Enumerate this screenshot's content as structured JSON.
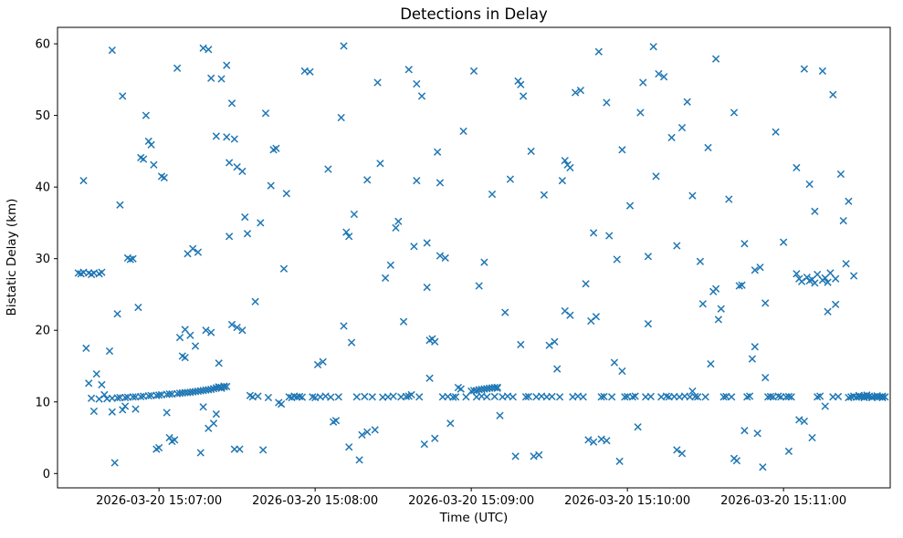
{
  "chart_data": {
    "type": "scatter",
    "title": "Detections in Delay",
    "xlabel": "Time (UTC)",
    "ylabel": "Bistatic Delay (km)",
    "marker": "x",
    "marker_color": "#1f77b4",
    "grid": false,
    "legend": null,
    "x_unit": "seconds after 2026-03-20 15:00:00 UTC",
    "xlim": [
      381,
      701
    ],
    "ylim": [
      -2,
      62.3
    ],
    "x_ticks": [
      {
        "s": 420,
        "label": "2026-03-20 15:07:00"
      },
      {
        "s": 480,
        "label": "2026-03-20 15:08:00"
      },
      {
        "s": 540,
        "label": "2026-03-20 15:09:00"
      },
      {
        "s": 600,
        "label": "2026-03-20 15:10:00"
      },
      {
        "s": 660,
        "label": "2026-03-20 15:11:00"
      }
    ],
    "y_ticks": [
      0,
      10,
      20,
      30,
      40,
      50,
      60
    ],
    "points": [
      [
        389,
        28.0
      ],
      [
        390,
        27.9
      ],
      [
        391,
        28.1
      ],
      [
        391,
        40.9
      ],
      [
        392,
        17.5
      ],
      [
        393,
        28.0
      ],
      [
        393,
        12.6
      ],
      [
        394,
        27.8
      ],
      [
        394,
        10.5
      ],
      [
        395,
        28.0
      ],
      [
        395,
        8.7
      ],
      [
        396,
        13.9
      ],
      [
        397,
        27.9
      ],
      [
        397,
        10.4
      ],
      [
        398,
        28.1
      ],
      [
        398,
        12.4
      ],
      [
        399,
        11.0
      ],
      [
        400,
        10.45
      ],
      [
        401,
        17.1
      ],
      [
        402,
        59.1
      ],
      [
        402,
        10.5
      ],
      [
        402,
        8.6
      ],
      [
        403,
        1.5
      ],
      [
        404,
        22.3
      ],
      [
        404,
        10.55
      ],
      [
        405,
        37.5
      ],
      [
        405,
        10.6
      ],
      [
        406,
        52.7
      ],
      [
        406,
        8.9
      ],
      [
        407,
        10.6
      ],
      [
        407,
        9.4
      ],
      [
        408,
        30.1
      ],
      [
        408,
        10.65
      ],
      [
        409,
        29.9
      ],
      [
        410,
        30.0
      ],
      [
        410,
        10.7
      ],
      [
        411,
        9.0
      ],
      [
        411,
        10.7
      ],
      [
        412,
        23.2
      ],
      [
        413,
        44.1
      ],
      [
        413,
        10.75
      ],
      [
        414,
        43.9
      ],
      [
        414,
        10.8
      ],
      [
        415,
        50.0
      ],
      [
        416,
        46.4
      ],
      [
        416,
        10.85
      ],
      [
        417,
        45.9
      ],
      [
        417,
        10.9
      ],
      [
        418,
        43.1
      ],
      [
        419,
        3.4
      ],
      [
        419,
        10.9
      ],
      [
        420,
        3.6
      ],
      [
        420,
        10.95
      ],
      [
        421,
        41.5
      ],
      [
        421,
        11.0
      ],
      [
        422,
        41.3
      ],
      [
        423,
        8.5
      ],
      [
        423,
        11.05
      ],
      [
        424,
        5.0
      ],
      [
        424,
        11.1
      ],
      [
        425,
        4.5
      ],
      [
        425,
        11.1
      ],
      [
        426,
        4.7
      ],
      [
        427,
        56.6
      ],
      [
        427,
        11.15
      ],
      [
        428,
        19.0
      ],
      [
        428,
        11.2
      ],
      [
        429,
        16.4
      ],
      [
        429,
        11.25
      ],
      [
        430,
        16.2
      ],
      [
        430,
        20.1
      ],
      [
        430,
        11.3
      ],
      [
        431,
        30.7
      ],
      [
        431,
        11.3
      ],
      [
        432,
        19.3
      ],
      [
        432,
        11.35
      ],
      [
        433,
        31.4
      ],
      [
        433,
        11.4
      ],
      [
        434,
        17.8
      ],
      [
        434,
        11.45
      ],
      [
        435,
        30.9
      ],
      [
        435,
        11.5
      ],
      [
        436,
        2.9
      ],
      [
        436,
        11.55
      ],
      [
        437,
        9.3
      ],
      [
        437,
        59.4
      ],
      [
        437,
        11.6
      ],
      [
        438,
        20.0
      ],
      [
        438,
        11.65
      ],
      [
        439,
        59.2
      ],
      [
        439,
        6.3
      ],
      [
        439,
        11.7
      ],
      [
        440,
        19.7
      ],
      [
        440,
        55.2
      ],
      [
        440,
        11.75
      ],
      [
        441,
        7.0
      ],
      [
        441,
        11.85
      ],
      [
        442,
        47.1
      ],
      [
        442,
        8.3
      ],
      [
        442,
        11.95
      ],
      [
        443,
        15.4
      ],
      [
        443,
        12.0
      ],
      [
        443,
        12.1
      ],
      [
        444,
        12.05
      ],
      [
        444,
        11.9
      ],
      [
        445,
        12.1
      ],
      [
        445,
        12.2
      ],
      [
        446,
        12.15
      ],
      [
        444,
        55.1
      ],
      [
        446,
        57.0
      ],
      [
        446,
        47.0
      ],
      [
        447,
        43.4
      ],
      [
        447,
        33.1
      ],
      [
        448,
        51.7
      ],
      [
        448,
        20.8
      ],
      [
        449,
        46.7
      ],
      [
        449,
        3.4
      ],
      [
        450,
        42.8
      ],
      [
        450,
        20.4
      ],
      [
        451,
        3.4
      ],
      [
        452,
        42.2
      ],
      [
        452,
        20.0
      ],
      [
        453,
        35.8
      ],
      [
        454,
        33.5
      ],
      [
        455,
        10.9
      ],
      [
        456,
        10.7
      ],
      [
        457,
        24.0
      ],
      [
        458,
        10.8
      ],
      [
        459,
        35.0
      ],
      [
        460,
        3.3
      ],
      [
        461,
        50.3
      ],
      [
        462,
        10.6
      ],
      [
        463,
        40.2
      ],
      [
        464,
        45.2
      ],
      [
        465,
        45.4
      ],
      [
        466,
        9.9
      ],
      [
        467,
        9.7
      ],
      [
        468,
        28.6
      ],
      [
        469,
        39.1
      ],
      [
        470,
        10.7
      ],
      [
        471,
        10.6
      ],
      [
        472,
        10.8
      ],
      [
        473,
        10.7
      ],
      [
        474,
        10.75
      ],
      [
        475,
        10.65
      ],
      [
        476,
        56.2
      ],
      [
        478,
        56.1
      ],
      [
        479,
        10.7
      ],
      [
        480,
        10.6
      ],
      [
        481,
        15.2
      ],
      [
        482,
        10.7
      ],
      [
        483,
        15.6
      ],
      [
        484,
        10.8
      ],
      [
        485,
        42.5
      ],
      [
        486,
        10.65
      ],
      [
        487,
        7.2
      ],
      [
        488,
        7.4
      ],
      [
        489,
        10.7
      ],
      [
        490,
        49.7
      ],
      [
        491,
        59.7
      ],
      [
        491,
        20.6
      ],
      [
        492,
        33.7
      ],
      [
        493,
        33.1
      ],
      [
        493,
        3.7
      ],
      [
        494,
        18.3
      ],
      [
        495,
        36.2
      ],
      [
        496,
        10.7
      ],
      [
        497,
        1.9
      ],
      [
        498,
        5.4
      ],
      [
        499,
        10.75
      ],
      [
        500,
        5.8
      ],
      [
        500,
        41.0
      ],
      [
        502,
        10.7
      ],
      [
        503,
        6.1
      ],
      [
        504,
        54.6
      ],
      [
        505,
        43.3
      ],
      [
        506,
        10.65
      ],
      [
        507,
        27.3
      ],
      [
        508,
        10.7
      ],
      [
        509,
        29.1
      ],
      [
        510,
        10.8
      ],
      [
        511,
        34.3
      ],
      [
        512,
        35.2
      ],
      [
        513,
        10.7
      ],
      [
        514,
        21.2
      ],
      [
        515,
        10.75
      ],
      [
        516,
        56.4
      ],
      [
        516,
        10.8
      ],
      [
        517,
        11.0
      ],
      [
        518,
        31.7
      ],
      [
        519,
        40.9
      ],
      [
        519,
        54.4
      ],
      [
        520,
        10.7
      ],
      [
        521,
        52.7
      ],
      [
        522,
        4.1
      ],
      [
        523,
        32.2
      ],
      [
        523,
        26.0
      ],
      [
        524,
        18.6
      ],
      [
        524,
        13.3
      ],
      [
        525,
        18.8
      ],
      [
        526,
        18.4
      ],
      [
        526,
        4.9
      ],
      [
        527,
        44.9
      ],
      [
        528,
        30.4
      ],
      [
        528,
        40.6
      ],
      [
        529,
        10.7
      ],
      [
        530,
        30.1
      ],
      [
        531,
        10.75
      ],
      [
        532,
        7.0
      ],
      [
        533,
        10.65
      ],
      [
        534,
        10.7
      ],
      [
        535,
        12.0
      ],
      [
        536,
        11.8
      ],
      [
        537,
        47.8
      ],
      [
        538,
        10.7
      ],
      [
        540,
        11.5
      ],
      [
        541,
        56.2
      ],
      [
        541,
        11.6
      ],
      [
        542,
        10.7
      ],
      [
        542,
        11.6
      ],
      [
        543,
        26.2
      ],
      [
        543,
        11.7
      ],
      [
        544,
        10.8
      ],
      [
        544,
        11.75
      ],
      [
        545,
        29.5
      ],
      [
        545,
        11.8
      ],
      [
        546,
        11.85
      ],
      [
        546,
        10.7
      ],
      [
        547,
        11.9
      ],
      [
        548,
        39.0
      ],
      [
        548,
        11.95
      ],
      [
        549,
        12.0
      ],
      [
        549,
        10.75
      ],
      [
        550,
        11.9
      ],
      [
        550,
        12.05
      ],
      [
        551,
        8.1
      ],
      [
        552,
        10.7
      ],
      [
        553,
        22.5
      ],
      [
        554,
        10.8
      ],
      [
        555,
        41.1
      ],
      [
        556,
        10.7
      ],
      [
        557,
        2.4
      ],
      [
        558,
        54.8
      ],
      [
        559,
        54.3
      ],
      [
        559,
        18.0
      ],
      [
        560,
        52.7
      ],
      [
        561,
        10.7
      ],
      [
        562,
        10.75
      ],
      [
        563,
        45.0
      ],
      [
        564,
        2.4
      ],
      [
        565,
        10.7
      ],
      [
        566,
        2.6
      ],
      [
        567,
        10.8
      ],
      [
        568,
        38.9
      ],
      [
        569,
        10.7
      ],
      [
        570,
        17.9
      ],
      [
        571,
        10.75
      ],
      [
        572,
        18.4
      ],
      [
        573,
        14.6
      ],
      [
        574,
        10.7
      ],
      [
        575,
        40.9
      ],
      [
        576,
        22.7
      ],
      [
        576,
        43.7
      ],
      [
        577,
        43.1
      ],
      [
        578,
        42.7
      ],
      [
        578,
        22.1
      ],
      [
        579,
        10.7
      ],
      [
        580,
        53.2
      ],
      [
        581,
        10.8
      ],
      [
        582,
        53.5
      ],
      [
        583,
        10.7
      ],
      [
        584,
        26.5
      ],
      [
        585,
        4.7
      ],
      [
        586,
        21.3
      ],
      [
        587,
        4.4
      ],
      [
        587,
        33.6
      ],
      [
        588,
        21.9
      ],
      [
        589,
        58.9
      ],
      [
        590,
        4.8
      ],
      [
        590,
        10.7
      ],
      [
        591,
        10.75
      ],
      [
        592,
        4.6
      ],
      [
        592,
        51.8
      ],
      [
        593,
        33.2
      ],
      [
        594,
        10.7
      ],
      [
        595,
        15.5
      ],
      [
        596,
        29.9
      ],
      [
        597,
        1.7
      ],
      [
        598,
        14.3
      ],
      [
        598,
        45.2
      ],
      [
        599,
        10.7
      ],
      [
        600,
        10.75
      ],
      [
        601,
        37.4
      ],
      [
        602,
        10.7
      ],
      [
        603,
        10.8
      ],
      [
        604,
        6.5
      ],
      [
        605,
        50.4
      ],
      [
        606,
        54.6
      ],
      [
        607,
        10.7
      ],
      [
        608,
        30.3
      ],
      [
        608,
        20.9
      ],
      [
        609,
        10.75
      ],
      [
        610,
        59.6
      ],
      [
        611,
        41.5
      ],
      [
        612,
        55.8
      ],
      [
        613,
        10.7
      ],
      [
        614,
        55.4
      ],
      [
        615,
        10.8
      ],
      [
        616,
        10.7
      ],
      [
        617,
        46.9
      ],
      [
        618,
        10.75
      ],
      [
        619,
        31.8
      ],
      [
        619,
        3.3
      ],
      [
        620,
        10.7
      ],
      [
        621,
        2.8
      ],
      [
        621,
        48.3
      ],
      [
        622,
        10.8
      ],
      [
        623,
        51.9
      ],
      [
        624,
        10.7
      ],
      [
        625,
        38.8
      ],
      [
        625,
        11.5
      ],
      [
        626,
        10.75
      ],
      [
        627,
        10.7
      ],
      [
        628,
        29.6
      ],
      [
        629,
        23.7
      ],
      [
        630,
        10.7
      ],
      [
        631,
        45.5
      ],
      [
        632,
        15.3
      ],
      [
        633,
        25.4
      ],
      [
        634,
        25.8
      ],
      [
        634,
        57.9
      ],
      [
        635,
        21.5
      ],
      [
        636,
        23.0
      ],
      [
        637,
        10.7
      ],
      [
        638,
        10.75
      ],
      [
        639,
        38.3
      ],
      [
        640,
        10.7
      ],
      [
        641,
        50.4
      ],
      [
        641,
        2.1
      ],
      [
        642,
        1.8
      ],
      [
        643,
        26.2
      ],
      [
        644,
        26.3
      ],
      [
        645,
        6.0
      ],
      [
        645,
        32.1
      ],
      [
        646,
        10.7
      ],
      [
        647,
        10.8
      ],
      [
        648,
        16.0
      ],
      [
        649,
        17.7
      ],
      [
        649,
        28.4
      ],
      [
        650,
        5.6
      ],
      [
        651,
        28.8
      ],
      [
        652,
        0.9
      ],
      [
        653,
        13.4
      ],
      [
        653,
        23.8
      ],
      [
        654,
        10.7
      ],
      [
        655,
        10.75
      ],
      [
        656,
        10.7
      ],
      [
        657,
        47.7
      ],
      [
        658,
        10.8
      ],
      [
        659,
        10.7
      ],
      [
        660,
        32.3
      ],
      [
        661,
        10.7
      ],
      [
        662,
        3.1
      ],
      [
        662,
        10.75
      ],
      [
        663,
        10.7
      ],
      [
        665,
        42.7
      ],
      [
        665,
        27.9
      ],
      [
        666,
        7.5
      ],
      [
        666,
        27.2
      ],
      [
        667,
        26.8
      ],
      [
        668,
        7.3
      ],
      [
        668,
        56.5
      ],
      [
        669,
        27.4
      ],
      [
        670,
        40.4
      ],
      [
        670,
        26.9
      ],
      [
        671,
        5.0
      ],
      [
        671,
        27.1
      ],
      [
        672,
        36.6
      ],
      [
        672,
        26.6
      ],
      [
        673,
        27.8
      ],
      [
        673,
        10.7
      ],
      [
        674,
        10.8
      ],
      [
        675,
        56.2
      ],
      [
        675,
        27.0
      ],
      [
        676,
        9.4
      ],
      [
        676,
        27.3
      ],
      [
        677,
        22.6
      ],
      [
        677,
        26.7
      ],
      [
        678,
        28.0
      ],
      [
        679,
        52.9
      ],
      [
        679,
        10.7
      ],
      [
        680,
        23.6
      ],
      [
        680,
        27.2
      ],
      [
        681,
        10.75
      ],
      [
        682,
        41.8
      ],
      [
        683,
        35.3
      ],
      [
        684,
        29.3
      ],
      [
        685,
        38.0
      ],
      [
        685,
        10.6
      ],
      [
        686,
        10.7
      ],
      [
        687,
        27.6
      ],
      [
        687,
        10.8
      ],
      [
        688,
        10.65
      ],
      [
        689,
        10.7
      ],
      [
        689,
        10.9
      ],
      [
        690,
        10.75
      ],
      [
        691,
        10.6
      ],
      [
        691,
        10.85
      ],
      [
        692,
        10.7
      ],
      [
        692,
        10.95
      ],
      [
        693,
        10.8
      ],
      [
        694,
        10.7
      ],
      [
        694,
        10.6
      ],
      [
        695,
        10.75
      ],
      [
        696,
        10.85
      ],
      [
        696,
        10.65
      ],
      [
        697,
        10.7
      ],
      [
        698,
        10.8
      ],
      [
        698,
        10.6
      ],
      [
        699,
        10.7
      ]
    ]
  }
}
